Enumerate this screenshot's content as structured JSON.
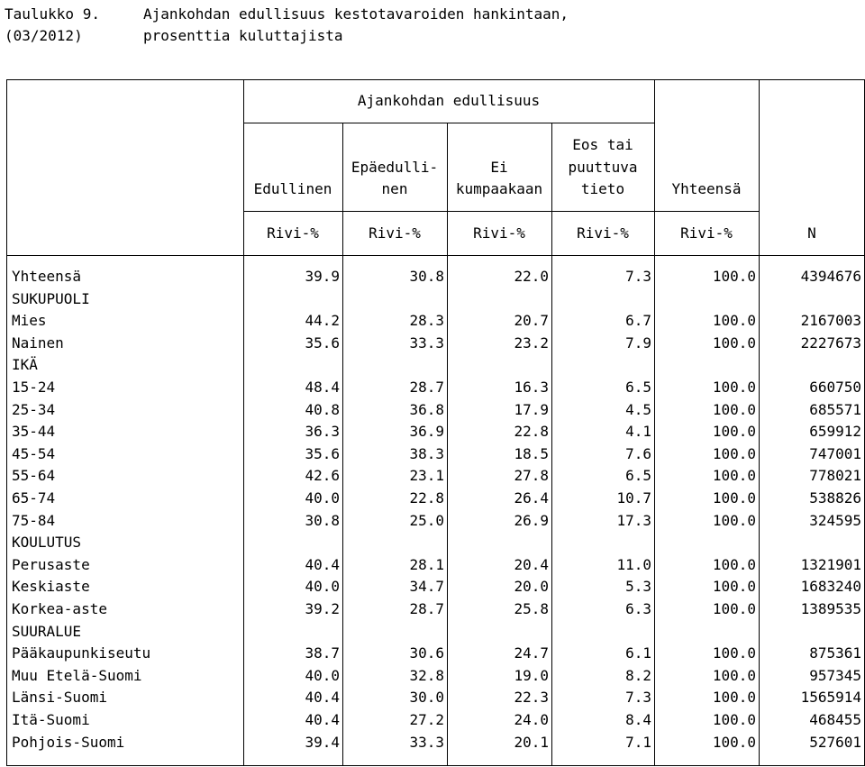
{
  "title": {
    "label_line1": "Taulukko 9.",
    "label_line2": "(03/2012)",
    "text_line1": "Ajankohdan edullisuus kestotavaroiden hankintaan,",
    "text_line2": "prosenttia kuluttajista"
  },
  "header": {
    "group": "Ajankohdan edullisuus",
    "col1": "Edullinen",
    "col2_a": "Epäedulli-",
    "col2_b": "nen",
    "col3_a": "Ei",
    "col3_b": "kumpaakaan",
    "col4_a": "Eos tai",
    "col4_b": "puuttuva",
    "col4_c": "tieto",
    "col5": "Yhteensä",
    "unit1": "Rivi-%",
    "unit2": "Rivi-%",
    "unit3": "Rivi-%",
    "unit4": "Rivi-%",
    "unit5": "Rivi-%",
    "n": "N"
  },
  "rows": [
    {
      "label": "Yhteensä",
      "v": [
        "39.9",
        "30.8",
        "22.0",
        "7.3",
        "100.0",
        "4394676"
      ]
    },
    {
      "label": "SUKUPUOLI",
      "v": [
        "",
        "",
        "",
        "",
        "",
        ""
      ]
    },
    {
      "label": "Mies",
      "v": [
        "44.2",
        "28.3",
        "20.7",
        "6.7",
        "100.0",
        "2167003"
      ]
    },
    {
      "label": "Nainen",
      "v": [
        "35.6",
        "33.3",
        "23.2",
        "7.9",
        "100.0",
        "2227673"
      ]
    },
    {
      "label": "IKÄ",
      "v": [
        "",
        "",
        "",
        "",
        "",
        ""
      ]
    },
    {
      "label": "15-24",
      "v": [
        "48.4",
        "28.7",
        "16.3",
        "6.5",
        "100.0",
        "660750"
      ]
    },
    {
      "label": "25-34",
      "v": [
        "40.8",
        "36.8",
        "17.9",
        "4.5",
        "100.0",
        "685571"
      ]
    },
    {
      "label": "35-44",
      "v": [
        "36.3",
        "36.9",
        "22.8",
        "4.1",
        "100.0",
        "659912"
      ]
    },
    {
      "label": "45-54",
      "v": [
        "35.6",
        "38.3",
        "18.5",
        "7.6",
        "100.0",
        "747001"
      ]
    },
    {
      "label": "55-64",
      "v": [
        "42.6",
        "23.1",
        "27.8",
        "6.5",
        "100.0",
        "778021"
      ]
    },
    {
      "label": "65-74",
      "v": [
        "40.0",
        "22.8",
        "26.4",
        "10.7",
        "100.0",
        "538826"
      ]
    },
    {
      "label": "75-84",
      "v": [
        "30.8",
        "25.0",
        "26.9",
        "17.3",
        "100.0",
        "324595"
      ]
    },
    {
      "label": "KOULUTUS",
      "v": [
        "",
        "",
        "",
        "",
        "",
        ""
      ]
    },
    {
      "label": "Perusaste",
      "v": [
        "40.4",
        "28.1",
        "20.4",
        "11.0",
        "100.0",
        "1321901"
      ]
    },
    {
      "label": "Keskiaste",
      "v": [
        "40.0",
        "34.7",
        "20.0",
        "5.3",
        "100.0",
        "1683240"
      ]
    },
    {
      "label": "Korkea-aste",
      "v": [
        "39.2",
        "28.7",
        "25.8",
        "6.3",
        "100.0",
        "1389535"
      ]
    },
    {
      "label": "SUURALUE",
      "v": [
        "",
        "",
        "",
        "",
        "",
        ""
      ]
    },
    {
      "label": "Pääkaupunkiseutu",
      "v": [
        "38.7",
        "30.6",
        "24.7",
        "6.1",
        "100.0",
        "875361"
      ]
    },
    {
      "label": "Muu Etelä-Suomi",
      "v": [
        "40.0",
        "32.8",
        "19.0",
        "8.2",
        "100.0",
        "957345"
      ]
    },
    {
      "label": "Länsi-Suomi",
      "v": [
        "40.4",
        "30.0",
        "22.3",
        "7.3",
        "100.0",
        "1565914"
      ]
    },
    {
      "label": "Itä-Suomi",
      "v": [
        "40.4",
        "27.2",
        "24.0",
        "8.4",
        "100.0",
        "468455"
      ]
    },
    {
      "label": "Pohjois-Suomi",
      "v": [
        "39.4",
        "33.3",
        "20.1",
        "7.1",
        "100.0",
        "527601"
      ]
    }
  ]
}
